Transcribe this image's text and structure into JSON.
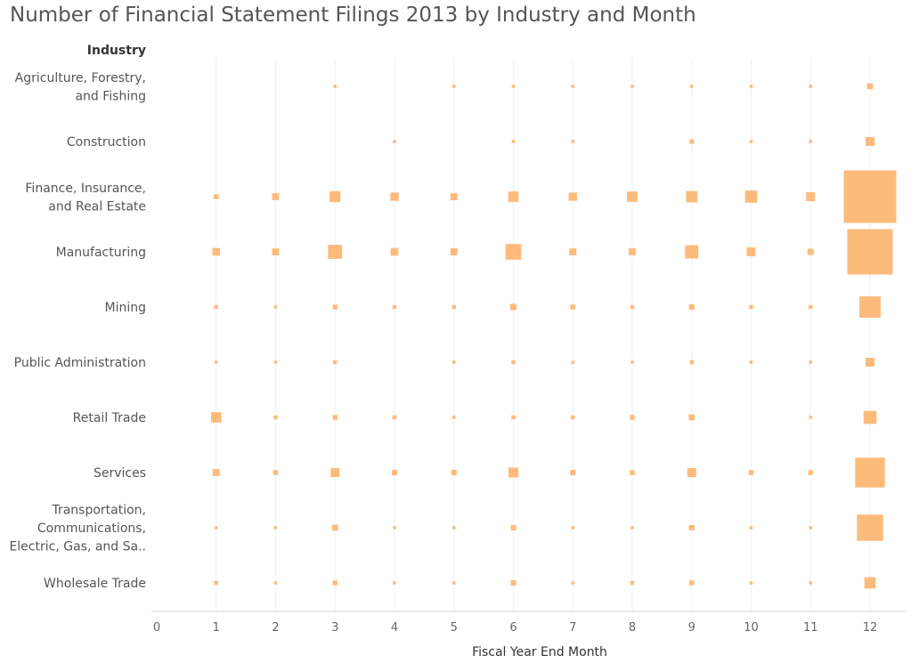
{
  "title": "Number of Financial Statement Filings 2013 by Industry and Month",
  "colors": {
    "mark": "#fdbb7b",
    "grid": "#f0f0f0",
    "axis": "#d9d9d9"
  },
  "chart_data": {
    "type": "scatter",
    "mark": "square",
    "size_encodes": "Number of Financial Statement Filings",
    "row_header": "Industry",
    "xlabel": "Fiscal Year End Month",
    "x_ticks": [
      0,
      1,
      2,
      3,
      4,
      5,
      6,
      7,
      8,
      9,
      10,
      11,
      12
    ],
    "xlim": [
      0,
      12.6
    ],
    "grid": "vertical",
    "rows": [
      {
        "label_lines": [
          "Agriculture, Forestry,",
          "and Fishing"
        ],
        "sizes": [
          0,
          0,
          5,
          0,
          5,
          5,
          5,
          5,
          5,
          5,
          5,
          18
        ]
      },
      {
        "label_lines": [
          "Construction"
        ],
        "sizes": [
          0,
          0,
          0,
          5,
          0,
          5,
          5,
          0,
          10,
          5,
          5,
          40
        ]
      },
      {
        "label_lines": [
          "Finance, Insurance,",
          "and Real Estate"
        ],
        "sizes": [
          12,
          25,
          60,
          35,
          25,
          55,
          35,
          55,
          65,
          75,
          40,
          1400
        ]
      },
      {
        "label_lines": [
          "Manufacturing"
        ],
        "sizes": [
          30,
          25,
          100,
          30,
          25,
          125,
          25,
          25,
          90,
          40,
          20,
          1050
        ]
      },
      {
        "label_lines": [
          "Mining"
        ],
        "sizes": [
          8,
          5,
          12,
          8,
          8,
          20,
          12,
          8,
          15,
          8,
          8,
          230
        ]
      },
      {
        "label_lines": [
          "Public Administration"
        ],
        "sizes": [
          5,
          5,
          8,
          0,
          5,
          8,
          5,
          5,
          8,
          5,
          5,
          40
        ]
      },
      {
        "label_lines": [
          "Retail Trade"
        ],
        "sizes": [
          55,
          8,
          12,
          8,
          5,
          8,
          8,
          12,
          18,
          0,
          5,
          85
        ]
      },
      {
        "label_lines": [
          "Services"
        ],
        "sizes": [
          25,
          12,
          40,
          15,
          15,
          50,
          15,
          12,
          40,
          12,
          12,
          450
        ]
      },
      {
        "label_lines": [
          "Transportation,",
          "Communications,",
          "Electric, Gas, and Sa.."
        ],
        "sizes": [
          5,
          5,
          18,
          5,
          5,
          15,
          5,
          5,
          15,
          5,
          5,
          350
        ]
      },
      {
        "label_lines": [
          "Wholesale Trade"
        ],
        "sizes": [
          8,
          5,
          12,
          5,
          5,
          15,
          5,
          8,
          12,
          5,
          5,
          65
        ]
      }
    ]
  }
}
